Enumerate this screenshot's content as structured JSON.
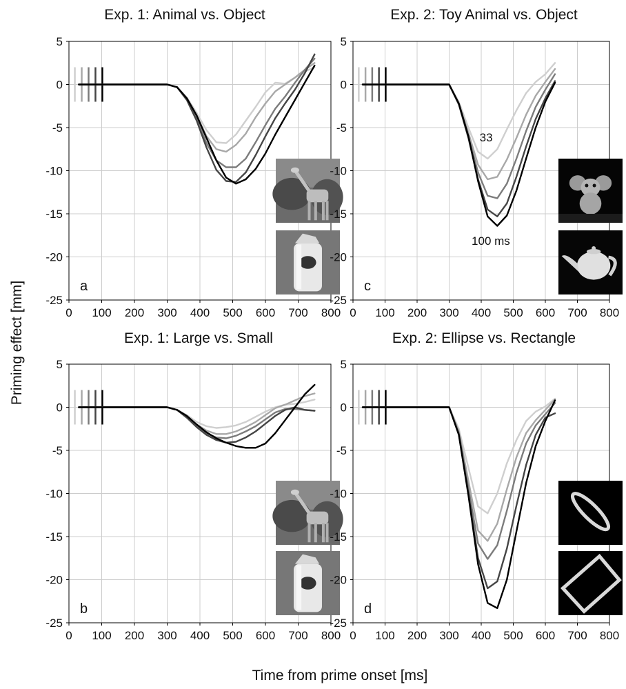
{
  "figure": {
    "ylabel": "Priming effect [mm]",
    "xlabel": "Time from prime onset [ms]"
  },
  "chart_data": [
    {
      "type": "line",
      "letter": "a",
      "title": "Exp. 1: Animal vs. Object",
      "xlim": [
        0,
        800
      ],
      "ylim": [
        -25,
        5
      ],
      "xticks": [
        "0",
        "100",
        "200",
        "300",
        "400",
        "500",
        "600",
        "700",
        "800"
      ],
      "yticks": [
        "5",
        "0",
        "-5",
        "-10",
        "-15",
        "-20",
        "-25"
      ],
      "grid": true,
      "series_colors": [
        "#cfcfcf",
        "#a8a8a8",
        "#7c7c7c",
        "#454545",
        "#000000"
      ],
      "series": [
        {
          "x": [
            30,
            150,
            300,
            330,
            360,
            390,
            420,
            450,
            480,
            510,
            540,
            570,
            600,
            630,
            660,
            690,
            720,
            750
          ],
          "y": [
            0,
            0,
            0,
            -0.3,
            -1.5,
            -3.3,
            -5.3,
            -6.7,
            -6.8,
            -5.8,
            -4.2,
            -2.6,
            -0.9,
            0.2,
            0.1,
            0.8,
            1.5,
            2.0
          ]
        },
        {
          "x": [
            30,
            150,
            300,
            330,
            360,
            390,
            420,
            450,
            480,
            510,
            540,
            570,
            600,
            630,
            660,
            690,
            720,
            750
          ],
          "y": [
            0,
            0,
            0,
            -0.3,
            -1.6,
            -3.6,
            -6.0,
            -7.5,
            -7.8,
            -7.0,
            -5.7,
            -3.8,
            -2.2,
            -0.8,
            0.0,
            0.8,
            1.7,
            2.5
          ]
        },
        {
          "x": [
            30,
            150,
            300,
            330,
            360,
            390,
            420,
            450,
            480,
            510,
            540,
            570,
            600,
            630,
            660,
            690,
            720,
            750
          ],
          "y": [
            0,
            0,
            0,
            -0.3,
            -1.7,
            -4.0,
            -6.8,
            -8.8,
            -9.6,
            -9.6,
            -8.6,
            -6.7,
            -4.7,
            -2.8,
            -1.4,
            0.2,
            1.7,
            3.0
          ]
        },
        {
          "x": [
            30,
            150,
            300,
            330,
            360,
            390,
            420,
            450,
            480,
            510,
            540,
            570,
            600,
            630,
            660,
            690,
            720,
            750
          ],
          "y": [
            0,
            0,
            0,
            -0.3,
            -1.8,
            -4.2,
            -7.3,
            -9.9,
            -11.2,
            -11.3,
            -10.2,
            -8.2,
            -6.0,
            -3.9,
            -2.2,
            -0.6,
            1.3,
            3.5
          ]
        },
        {
          "x": [
            30,
            150,
            300,
            330,
            360,
            390,
            420,
            450,
            480,
            510,
            540,
            570,
            600,
            630,
            660,
            690,
            720,
            750
          ],
          "y": [
            0,
            0,
            0,
            -0.3,
            -1.6,
            -3.6,
            -6.2,
            -8.8,
            -10.8,
            -11.5,
            -11.0,
            -9.8,
            -8.0,
            -5.8,
            -3.8,
            -1.8,
            0.2,
            2.2
          ]
        }
      ],
      "annotations": [],
      "icons": [
        "giraffe-photo",
        "thermos-photo"
      ]
    },
    {
      "type": "line",
      "letter": "c",
      "title": "Exp. 2: Toy Animal vs. Object",
      "xlim": [
        0,
        800
      ],
      "ylim": [
        -25,
        5
      ],
      "xticks": [
        "0",
        "100",
        "200",
        "300",
        "400",
        "500",
        "600",
        "700",
        "800"
      ],
      "yticks": [
        "5",
        "0",
        "-5",
        "-10",
        "-15",
        "-20",
        "-25"
      ],
      "grid": true,
      "series_colors": [
        "#cfcfcf",
        "#a8a8a8",
        "#7c7c7c",
        "#454545",
        "#000000"
      ],
      "series": [
        {
          "x": [
            30,
            150,
            300,
            330,
            360,
            390,
            420,
            450,
            480,
            510,
            540,
            570,
            600,
            630
          ],
          "y": [
            0,
            0,
            0,
            -2.0,
            -5.0,
            -7.8,
            -8.6,
            -7.5,
            -5.2,
            -3.0,
            -1.0,
            0.3,
            1.2,
            2.5
          ]
        },
        {
          "x": [
            30,
            150,
            300,
            330,
            360,
            390,
            420,
            450,
            480,
            510,
            540,
            570,
            600,
            630
          ],
          "y": [
            0,
            0,
            0,
            -2.2,
            -5.6,
            -9.3,
            -11.0,
            -10.7,
            -8.7,
            -6.2,
            -3.5,
            -1.3,
            0.3,
            1.8
          ]
        },
        {
          "x": [
            30,
            150,
            300,
            330,
            360,
            390,
            420,
            450,
            480,
            510,
            540,
            570,
            600,
            630
          ],
          "y": [
            0,
            0,
            0,
            -2.3,
            -6.0,
            -10.2,
            -12.9,
            -13.2,
            -11.5,
            -8.6,
            -5.4,
            -2.6,
            -0.6,
            1.2
          ]
        },
        {
          "x": [
            30,
            150,
            300,
            330,
            360,
            390,
            420,
            450,
            480,
            510,
            540,
            570,
            600,
            630
          ],
          "y": [
            0,
            0,
            0,
            -2.3,
            -6.2,
            -11.0,
            -14.5,
            -15.3,
            -13.8,
            -10.7,
            -7.2,
            -4.0,
            -1.6,
            0.4
          ]
        },
        {
          "x": [
            30,
            150,
            300,
            330,
            360,
            390,
            420,
            450,
            480,
            510,
            540,
            570,
            600,
            630
          ],
          "y": [
            0,
            0,
            0,
            -2.2,
            -6.0,
            -11.2,
            -15.3,
            -16.4,
            -15.2,
            -12.3,
            -8.6,
            -5.0,
            -2.0,
            0.2
          ]
        }
      ],
      "annotations": [
        {
          "text": "33",
          "x": 395,
          "y": -6.6
        },
        {
          "text": "100 ms",
          "x": 370,
          "y": -18.6
        }
      ],
      "icons": [
        "toy-mouse-photo",
        "teapot-photo"
      ]
    },
    {
      "type": "line",
      "letter": "b",
      "title": "Exp. 1: Large vs. Small",
      "xlim": [
        0,
        800
      ],
      "ylim": [
        -25,
        5
      ],
      "xticks": [
        "0",
        "100",
        "200",
        "300",
        "400",
        "500",
        "600",
        "700",
        "800"
      ],
      "yticks": [
        "5",
        "0",
        "-5",
        "-10",
        "-15",
        "-20",
        "-25"
      ],
      "grid": true,
      "series_colors": [
        "#cfcfcf",
        "#a8a8a8",
        "#7c7c7c",
        "#454545",
        "#000000"
      ],
      "series": [
        {
          "x": [
            30,
            150,
            300,
            330,
            360,
            390,
            420,
            450,
            480,
            510,
            540,
            570,
            600,
            630,
            660,
            690,
            720,
            750
          ],
          "y": [
            0,
            0,
            0,
            -0.3,
            -0.9,
            -1.7,
            -2.2,
            -2.4,
            -2.3,
            -2.1,
            -1.7,
            -1.1,
            -0.5,
            0.0,
            0.3,
            0.4,
            0.6,
            0.9
          ]
        },
        {
          "x": [
            30,
            150,
            300,
            330,
            360,
            390,
            420,
            450,
            480,
            510,
            540,
            570,
            600,
            630,
            660,
            690,
            720,
            750
          ],
          "y": [
            0,
            0,
            0,
            -0.3,
            -1.1,
            -2.0,
            -2.7,
            -3.1,
            -3.1,
            -2.8,
            -2.3,
            -1.7,
            -0.9,
            -0.1,
            0.3,
            0.8,
            1.3,
            1.6
          ]
        },
        {
          "x": [
            30,
            150,
            300,
            330,
            360,
            390,
            420,
            450,
            480,
            510,
            540,
            570,
            600,
            630,
            660,
            690,
            720,
            750
          ],
          "y": [
            0,
            0,
            0,
            -0.3,
            -1.2,
            -2.2,
            -3.0,
            -3.5,
            -3.6,
            -3.3,
            -2.8,
            -2.2,
            -1.4,
            -0.6,
            -0.2,
            -0.2,
            -0.3,
            -0.4
          ]
        },
        {
          "x": [
            30,
            150,
            300,
            330,
            360,
            390,
            420,
            450,
            480,
            510,
            540,
            570,
            600,
            630,
            660,
            690,
            720,
            750
          ],
          "y": [
            0,
            0,
            0,
            -0.3,
            -1.2,
            -2.3,
            -3.2,
            -3.8,
            -4.1,
            -4.0,
            -3.5,
            -2.8,
            -1.9,
            -1.0,
            -0.3,
            0.0,
            -0.3,
            -0.4
          ]
        },
        {
          "x": [
            30,
            150,
            300,
            330,
            360,
            390,
            420,
            450,
            480,
            510,
            540,
            570,
            600,
            630,
            660,
            690,
            720,
            750
          ],
          "y": [
            0,
            0,
            0,
            -0.3,
            -1.0,
            -2.0,
            -2.9,
            -3.6,
            -4.1,
            -4.5,
            -4.7,
            -4.7,
            -4.2,
            -3.0,
            -1.5,
            0.0,
            1.5,
            2.6
          ]
        }
      ],
      "annotations": [],
      "icons": [
        "giraffe-photo",
        "thermos-photo"
      ]
    },
    {
      "type": "line",
      "letter": "d",
      "title": "Exp. 2: Ellipse vs. Rectangle",
      "xlim": [
        0,
        800
      ],
      "ylim": [
        -25,
        5
      ],
      "xticks": [
        "0",
        "100",
        "200",
        "300",
        "400",
        "500",
        "600",
        "700",
        "800"
      ],
      "yticks": [
        "5",
        "0",
        "-5",
        "-10",
        "-15",
        "-20",
        "-25"
      ],
      "grid": true,
      "series_colors": [
        "#cfcfcf",
        "#a8a8a8",
        "#7c7c7c",
        "#454545",
        "#000000"
      ],
      "series": [
        {
          "x": [
            30,
            150,
            300,
            330,
            360,
            390,
            420,
            450,
            480,
            510,
            540,
            570,
            600,
            630
          ],
          "y": [
            0,
            0,
            0,
            -2.5,
            -7.0,
            -11.5,
            -12.3,
            -10.0,
            -6.5,
            -3.8,
            -1.6,
            -0.5,
            0.1,
            1.0
          ]
        },
        {
          "x": [
            30,
            150,
            300,
            330,
            360,
            390,
            420,
            450,
            480,
            510,
            540,
            570,
            600,
            630
          ],
          "y": [
            0,
            0,
            0,
            -2.8,
            -8.5,
            -14.3,
            -15.5,
            -13.5,
            -9.5,
            -5.8,
            -3.0,
            -1.5,
            -0.3,
            0.9
          ]
        },
        {
          "x": [
            30,
            150,
            300,
            330,
            360,
            390,
            420,
            450,
            480,
            510,
            540,
            570,
            600,
            630
          ],
          "y": [
            0,
            0,
            0,
            -3.0,
            -9.4,
            -15.8,
            -17.6,
            -16.0,
            -12.0,
            -7.6,
            -4.2,
            -2.1,
            -0.8,
            0.5
          ]
        },
        {
          "x": [
            30,
            150,
            300,
            330,
            360,
            390,
            420,
            450,
            480,
            510,
            540,
            570,
            600,
            630
          ],
          "y": [
            0,
            0,
            0,
            -3.1,
            -10.0,
            -17.5,
            -21.0,
            -20.2,
            -16.4,
            -11.4,
            -6.7,
            -3.2,
            -1.2,
            -0.7
          ]
        },
        {
          "x": [
            30,
            150,
            300,
            330,
            360,
            390,
            420,
            450,
            480,
            510,
            540,
            570,
            600,
            630
          ],
          "y": [
            0,
            0,
            0,
            -3.2,
            -10.2,
            -18.2,
            -22.7,
            -23.3,
            -20.0,
            -14.4,
            -8.8,
            -4.5,
            -1.6,
            0.8
          ]
        }
      ],
      "annotations": [],
      "icons": [
        "ellipse-shape",
        "rectangle-shape"
      ]
    }
  ]
}
